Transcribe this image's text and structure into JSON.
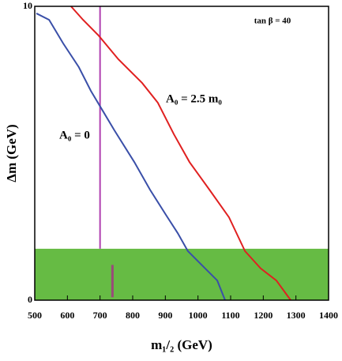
{
  "chart_data": {
    "type": "line",
    "xlabel": "m₁/₂ (GeV)",
    "ylabel": "Δm (GeV)",
    "annotation": "tan β = 40",
    "xlim": [
      500,
      1400
    ],
    "xticks": [
      500,
      600,
      700,
      800,
      900,
      1000,
      1100,
      1200,
      1300,
      1400
    ],
    "ylim": [
      0,
      10
    ],
    "yticks": [
      0,
      10
    ],
    "series": [
      {
        "name": "A₀ = 0",
        "color": "#3a4fa8",
        "x": [
          505,
          544,
          587,
          635,
          672,
          708,
          744,
          805,
          853,
          902,
          938,
          969,
          1022,
          1059,
          1083
        ],
        "values": [
          9.76,
          9.54,
          8.74,
          7.93,
          7.12,
          6.45,
          5.78,
          4.7,
          3.76,
          2.9,
          2.28,
          1.67,
          1.08,
          0.67,
          0
        ]
      },
      {
        "name": "A₀ = 2.5 m₀",
        "color": "#e02020",
        "x": [
          611,
          648,
          696,
          756,
          829,
          877,
          926,
          974,
          1035,
          1095,
          1144,
          1192,
          1240,
          1284
        ],
        "values": [
          10,
          9.54,
          9.0,
          8.2,
          7.39,
          6.72,
          5.65,
          4.7,
          3.76,
          2.82,
          1.67,
          1.08,
          0.67,
          0
        ]
      }
    ],
    "shaded_region": {
      "ylim": [
        0,
        1.75
      ],
      "color": "#66bb44"
    },
    "vertical_line": {
      "x": 700,
      "ylim": [
        1.75,
        10
      ],
      "color": "#b040b0"
    },
    "marker_line": {
      "x": 738,
      "ylim": [
        0.1,
        1.2
      ],
      "color": "#9a4a7a"
    }
  }
}
